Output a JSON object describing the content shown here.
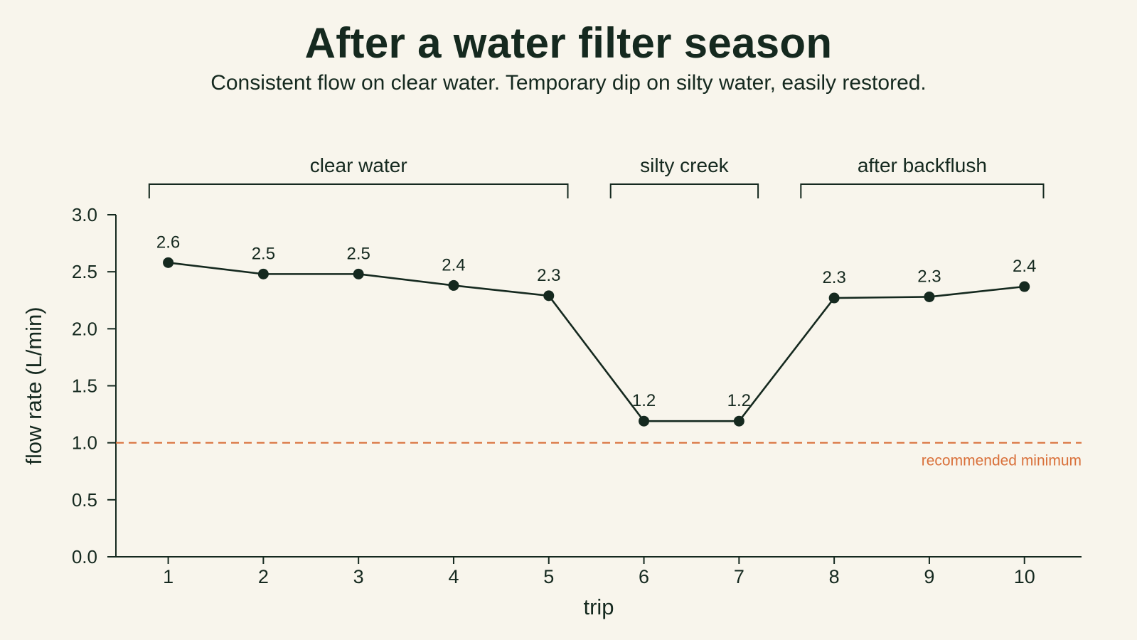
{
  "title": "After a water filter season",
  "subtitle": "Consistent flow on clear water. Temporary dip on silty water, easily restored.",
  "chart_data": {
    "type": "line",
    "title": "After a water filter season",
    "subtitle": "Consistent flow on clear water. Temporary dip on silty water, easily restored.",
    "xlabel": "trip",
    "ylabel": "flow rate (L/min)",
    "x": [
      1,
      2,
      3,
      4,
      5,
      6,
      7,
      8,
      9,
      10
    ],
    "values": [
      2.58,
      2.48,
      2.48,
      2.38,
      2.29,
      1.19,
      1.19,
      2.27,
      2.28,
      2.37
    ],
    "data_labels": [
      "2.6",
      "2.5",
      "2.5",
      "2.4",
      "2.3",
      "1.2",
      "1.2",
      "2.3",
      "2.3",
      "2.4"
    ],
    "x_ticks": [
      "1",
      "2",
      "3",
      "4",
      "5",
      "6",
      "7",
      "8",
      "9",
      "10"
    ],
    "y_ticks": [
      "0.0",
      "0.5",
      "1.0",
      "1.5",
      "2.0",
      "2.5",
      "3.0"
    ],
    "ylim": [
      0,
      3.0
    ],
    "xlim": [
      0.45,
      10.6
    ],
    "grid": false,
    "reference_line": {
      "y": 1.0,
      "label": "recommended minimum",
      "color": "#d9703a",
      "style": "dashed"
    },
    "groups": [
      {
        "label": "clear water",
        "from": 0.8,
        "to": 5.2
      },
      {
        "label": "silty creek",
        "from": 5.65,
        "to": 7.2
      },
      {
        "label": "after backflush",
        "from": 7.65,
        "to": 10.2
      }
    ],
    "colors": {
      "line": "#15291f",
      "background": "#f8f5ec",
      "reference": "#d9703a"
    }
  }
}
